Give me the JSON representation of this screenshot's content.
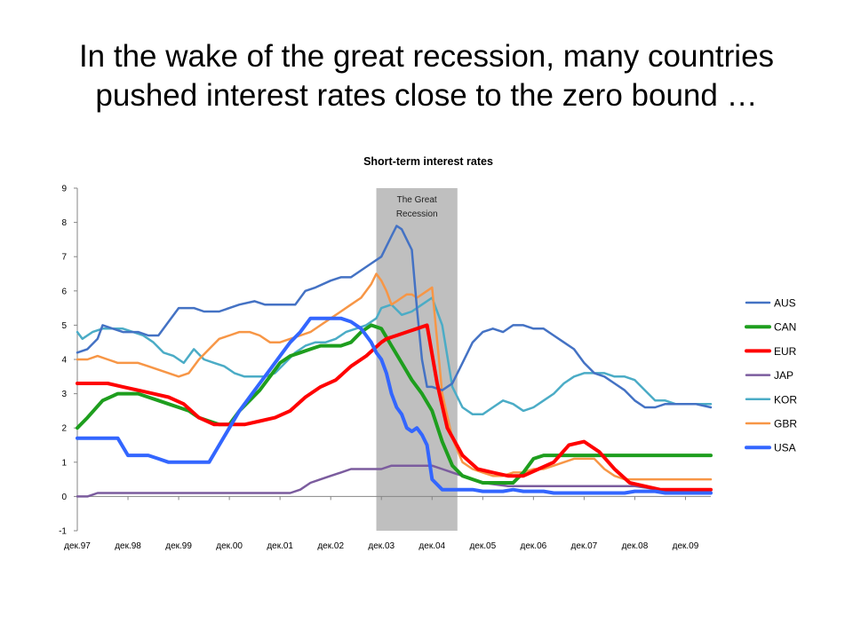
{
  "slide": {
    "title_line1": "In the wake of the great recession, many countries",
    "title_line2": "pushed interest rates close to the zero bound …"
  },
  "chart_data": {
    "type": "line",
    "title": "Short-term interest rates",
    "xlabel": "",
    "ylabel": "",
    "ylim": [
      -1,
      9
    ],
    "yticks": [
      -1,
      0,
      1,
      2,
      3,
      4,
      5,
      6,
      7,
      8,
      9
    ],
    "xlim": [
      0,
      12.5
    ],
    "x_tick_positions": [
      0,
      1,
      2,
      3,
      4,
      5,
      6,
      7,
      8,
      9,
      10,
      11,
      12
    ],
    "x_tick_labels": [
      "дек.97",
      "дек.98",
      "дек.99",
      "дек.00",
      "дек.01",
      "дек.02",
      "дек.03",
      "дек.04",
      "дек.05",
      "дек.06",
      "дек.07",
      "дек.08",
      "дек.09"
    ],
    "grid": false,
    "legend_position": "right",
    "annotation": {
      "text_line1": "The Great",
      "text_line2": "Recession",
      "x_start": 5.9,
      "x_end": 7.5
    },
    "series": [
      {
        "name": "AUS",
        "color": "#4472C4",
        "x": [
          0,
          0.2,
          0.4,
          0.5,
          0.7,
          0.9,
          1.2,
          1.4,
          1.6,
          1.8,
          2.0,
          2.3,
          2.5,
          2.8,
          3.0,
          3.2,
          3.5,
          3.7,
          3.9,
          4.1,
          4.3,
          4.5,
          4.7,
          5.0,
          5.2,
          5.4,
          5.6,
          5.8,
          6.0,
          6.1,
          6.2,
          6.3,
          6.4,
          6.5,
          6.6,
          6.7,
          6.8,
          6.9,
          7.0,
          7.2,
          7.4,
          7.6,
          7.8,
          8.0,
          8.2,
          8.4,
          8.6,
          8.8,
          9.0,
          9.2,
          9.4,
          9.6,
          9.8,
          10.0,
          10.2,
          10.4,
          10.6,
          10.8,
          11.0,
          11.2,
          11.4,
          11.6,
          11.8,
          12.0,
          12.2,
          12.5
        ],
        "y": [
          4.2,
          4.3,
          4.6,
          5.0,
          4.9,
          4.8,
          4.8,
          4.7,
          4.7,
          5.1,
          5.5,
          5.5,
          5.4,
          5.4,
          5.5,
          5.6,
          5.7,
          5.6,
          5.6,
          5.6,
          5.6,
          6.0,
          6.1,
          6.3,
          6.4,
          6.4,
          6.6,
          6.8,
          7.0,
          7.3,
          7.6,
          7.9,
          7.8,
          7.5,
          7.2,
          5.5,
          4.0,
          3.2,
          3.2,
          3.1,
          3.3,
          3.9,
          4.5,
          4.8,
          4.9,
          4.8,
          5.0,
          5.0,
          4.9,
          4.9,
          4.7,
          4.5,
          4.3,
          3.9,
          3.6,
          3.5,
          3.3,
          3.1,
          2.8,
          2.6,
          2.6,
          2.7,
          2.7,
          2.7,
          2.7,
          2.6
        ]
      },
      {
        "name": "CAN",
        "color": "#1E9E1E",
        "x": [
          0,
          0.2,
          0.5,
          0.8,
          1.0,
          1.2,
          1.4,
          1.6,
          1.8,
          2.0,
          2.2,
          2.4,
          2.6,
          2.8,
          3.0,
          3.2,
          3.4,
          3.6,
          3.8,
          4.0,
          4.2,
          4.4,
          4.6,
          4.8,
          5.0,
          5.2,
          5.4,
          5.6,
          5.8,
          6.0,
          6.2,
          6.4,
          6.6,
          6.8,
          7.0,
          7.2,
          7.4,
          7.6,
          7.8,
          8.0,
          8.2,
          8.4,
          8.6,
          8.8,
          9.0,
          9.2,
          9.4,
          9.6,
          9.8,
          10.0,
          10.5,
          11.0,
          11.5,
          12.0,
          12.5
        ],
        "y": [
          2.0,
          2.3,
          2.8,
          3.0,
          3.0,
          3.0,
          2.9,
          2.8,
          2.7,
          2.6,
          2.5,
          2.3,
          2.2,
          2.1,
          2.1,
          2.5,
          2.8,
          3.1,
          3.5,
          3.9,
          4.1,
          4.2,
          4.3,
          4.4,
          4.4,
          4.4,
          4.5,
          4.8,
          5.0,
          4.9,
          4.4,
          3.9,
          3.4,
          3.0,
          2.5,
          1.6,
          0.9,
          0.6,
          0.5,
          0.4,
          0.4,
          0.4,
          0.4,
          0.7,
          1.1,
          1.2,
          1.2,
          1.2,
          1.2,
          1.2,
          1.2,
          1.2,
          1.2,
          1.2,
          1.2
        ]
      },
      {
        "name": "EUR",
        "color": "#FF0000",
        "x": [
          0,
          0.3,
          0.6,
          0.9,
          1.2,
          1.5,
          1.8,
          2.1,
          2.4,
          2.7,
          3.0,
          3.3,
          3.6,
          3.9,
          4.2,
          4.5,
          4.8,
          5.1,
          5.4,
          5.7,
          6.0,
          6.1,
          6.3,
          6.5,
          6.7,
          6.9,
          7.1,
          7.3,
          7.6,
          7.9,
          8.2,
          8.5,
          8.8,
          9.1,
          9.4,
          9.7,
          10.0,
          10.3,
          10.6,
          10.9,
          11.2,
          11.5,
          11.8,
          12.0,
          12.2,
          12.5
        ],
        "y": [
          3.3,
          3.3,
          3.3,
          3.2,
          3.1,
          3.0,
          2.9,
          2.7,
          2.3,
          2.1,
          2.1,
          2.1,
          2.2,
          2.3,
          2.5,
          2.9,
          3.2,
          3.4,
          3.8,
          4.1,
          4.5,
          4.6,
          4.7,
          4.8,
          4.9,
          5.0,
          3.3,
          2.0,
          1.2,
          0.8,
          0.7,
          0.6,
          0.6,
          0.8,
          1.0,
          1.5,
          1.6,
          1.3,
          0.8,
          0.4,
          0.3,
          0.2,
          0.2,
          0.2,
          0.2,
          0.2
        ]
      },
      {
        "name": "JAP",
        "color": "#7B5C9E",
        "x": [
          0,
          0.2,
          0.4,
          0.6,
          1.0,
          1.5,
          2.0,
          2.5,
          3.0,
          3.5,
          4.0,
          4.2,
          4.4,
          4.6,
          4.8,
          5.0,
          5.2,
          5.4,
          5.6,
          5.8,
          6.0,
          6.2,
          6.4,
          6.6,
          6.8,
          7.0,
          7.2,
          7.4,
          7.6,
          7.8,
          8.0,
          8.5,
          9.0,
          9.5,
          10.0,
          10.5,
          11.0,
          11.5,
          12.0,
          12.5
        ],
        "y": [
          0.0,
          0.0,
          0.1,
          0.1,
          0.1,
          0.1,
          0.1,
          0.1,
          0.1,
          0.1,
          0.1,
          0.1,
          0.2,
          0.4,
          0.5,
          0.6,
          0.7,
          0.8,
          0.8,
          0.8,
          0.8,
          0.9,
          0.9,
          0.9,
          0.9,
          0.9,
          0.8,
          0.7,
          0.6,
          0.5,
          0.4,
          0.3,
          0.3,
          0.3,
          0.3,
          0.3,
          0.3,
          0.2,
          0.2,
          0.2
        ]
      },
      {
        "name": "KOR",
        "color": "#4BACC6",
        "x": [
          0,
          0.1,
          0.3,
          0.5,
          0.7,
          0.9,
          1.1,
          1.3,
          1.5,
          1.7,
          1.9,
          2.1,
          2.3,
          2.5,
          2.7,
          2.9,
          3.1,
          3.3,
          3.5,
          3.7,
          3.9,
          4.1,
          4.3,
          4.5,
          4.7,
          4.9,
          5.1,
          5.3,
          5.5,
          5.7,
          5.9,
          6.0,
          6.2,
          6.4,
          6.6,
          6.8,
          7.0,
          7.2,
          7.4,
          7.6,
          7.8,
          8.0,
          8.2,
          8.4,
          8.6,
          8.8,
          9.0,
          9.2,
          9.4,
          9.6,
          9.8,
          10.0,
          10.2,
          10.4,
          10.6,
          10.8,
          11.0,
          11.2,
          11.4,
          11.6,
          11.8,
          12.0,
          12.2,
          12.5
        ],
        "y": [
          4.8,
          4.6,
          4.8,
          4.9,
          4.9,
          4.9,
          4.8,
          4.7,
          4.5,
          4.2,
          4.1,
          3.9,
          4.3,
          4.0,
          3.9,
          3.8,
          3.6,
          3.5,
          3.5,
          3.5,
          3.6,
          3.9,
          4.2,
          4.4,
          4.5,
          4.5,
          4.6,
          4.8,
          4.9,
          5.0,
          5.2,
          5.5,
          5.6,
          5.3,
          5.4,
          5.6,
          5.8,
          5.0,
          3.2,
          2.6,
          2.4,
          2.4,
          2.6,
          2.8,
          2.7,
          2.5,
          2.6,
          2.8,
          3.0,
          3.3,
          3.5,
          3.6,
          3.6,
          3.6,
          3.5,
          3.5,
          3.4,
          3.1,
          2.8,
          2.8,
          2.7,
          2.7,
          2.7,
          2.7
        ]
      },
      {
        "name": "GBR",
        "color": "#F79646",
        "x": [
          0,
          0.2,
          0.4,
          0.6,
          0.8,
          1.0,
          1.2,
          1.4,
          1.6,
          1.8,
          2.0,
          2.2,
          2.4,
          2.6,
          2.8,
          3.0,
          3.2,
          3.4,
          3.6,
          3.8,
          4.0,
          4.2,
          4.4,
          4.6,
          4.8,
          5.0,
          5.2,
          5.4,
          5.6,
          5.8,
          5.9,
          6.0,
          6.1,
          6.2,
          6.3,
          6.4,
          6.5,
          6.6,
          6.7,
          6.8,
          6.9,
          7.0,
          7.2,
          7.4,
          7.6,
          7.8,
          8.0,
          8.2,
          8.4,
          8.6,
          8.8,
          9.0,
          9.2,
          9.4,
          9.6,
          9.8,
          10.0,
          10.2,
          10.4,
          10.6,
          10.8,
          11.0,
          11.2,
          11.5,
          11.8,
          12.0,
          12.2,
          12.5
        ],
        "y": [
          4.0,
          4.0,
          4.1,
          4.0,
          3.9,
          3.9,
          3.9,
          3.8,
          3.7,
          3.6,
          3.5,
          3.6,
          4.0,
          4.3,
          4.6,
          4.7,
          4.8,
          4.8,
          4.7,
          4.5,
          4.5,
          4.6,
          4.7,
          4.8,
          5.0,
          5.2,
          5.4,
          5.6,
          5.8,
          6.2,
          6.5,
          6.3,
          6.0,
          5.6,
          5.7,
          5.8,
          5.9,
          5.9,
          5.8,
          5.9,
          6.0,
          6.1,
          3.0,
          1.7,
          1.0,
          0.8,
          0.7,
          0.6,
          0.6,
          0.7,
          0.7,
          0.8,
          0.8,
          0.9,
          1.0,
          1.1,
          1.1,
          1.1,
          0.8,
          0.6,
          0.5,
          0.5,
          0.5,
          0.5,
          0.5,
          0.5,
          0.5,
          0.5
        ]
      },
      {
        "name": "USA",
        "color": "#3366FF",
        "x": [
          0,
          0.2,
          0.4,
          0.6,
          0.8,
          1.0,
          1.2,
          1.4,
          1.6,
          1.8,
          2.0,
          2.2,
          2.4,
          2.6,
          2.8,
          3.0,
          3.2,
          3.4,
          3.6,
          3.8,
          4.0,
          4.2,
          4.4,
          4.6,
          4.8,
          5.0,
          5.2,
          5.4,
          5.6,
          5.8,
          5.9,
          6.0,
          6.1,
          6.2,
          6.3,
          6.4,
          6.5,
          6.6,
          6.7,
          6.8,
          6.9,
          7.0,
          7.2,
          7.4,
          7.6,
          7.8,
          8.0,
          8.2,
          8.4,
          8.6,
          8.8,
          9.0,
          9.2,
          9.4,
          9.6,
          9.8,
          10.0,
          10.2,
          10.4,
          10.6,
          10.8,
          11.0,
          11.2,
          11.4,
          11.6,
          11.8,
          12.0,
          12.2,
          12.5
        ],
        "y": [
          1.7,
          1.7,
          1.7,
          1.7,
          1.7,
          1.2,
          1.2,
          1.2,
          1.1,
          1.0,
          1.0,
          1.0,
          1.0,
          1.0,
          1.5,
          2.0,
          2.5,
          2.9,
          3.3,
          3.7,
          4.1,
          4.5,
          4.8,
          5.2,
          5.2,
          5.2,
          5.2,
          5.1,
          4.9,
          4.5,
          4.2,
          4.0,
          3.6,
          3.0,
          2.6,
          2.4,
          2.0,
          1.9,
          2.0,
          1.8,
          1.5,
          0.5,
          0.2,
          0.2,
          0.2,
          0.2,
          0.15,
          0.15,
          0.15,
          0.2,
          0.15,
          0.15,
          0.15,
          0.1,
          0.1,
          0.1,
          0.1,
          0.1,
          0.1,
          0.1,
          0.1,
          0.15,
          0.15,
          0.15,
          0.1,
          0.1,
          0.1,
          0.1,
          0.1
        ]
      }
    ]
  }
}
